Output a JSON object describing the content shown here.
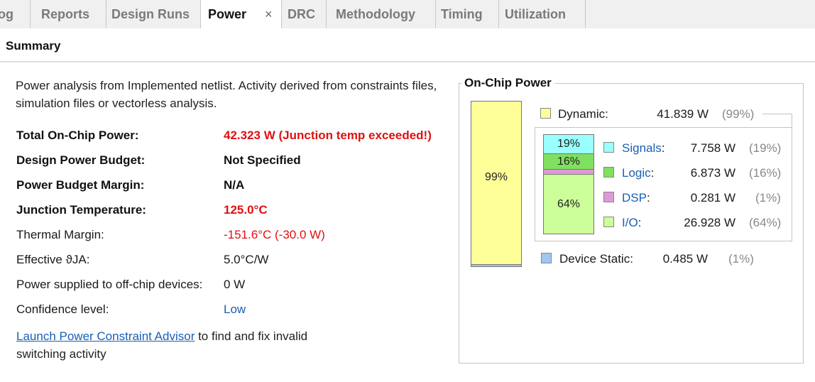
{
  "tabs": [
    {
      "label": "Log"
    },
    {
      "label": "Reports"
    },
    {
      "label": "Design Runs"
    },
    {
      "label": "Power",
      "active": true
    },
    {
      "label": "DRC"
    },
    {
      "label": "Methodology"
    },
    {
      "label": "Timing"
    },
    {
      "label": "Utilization"
    }
  ],
  "close_glyph": "×",
  "summary_title": "Summary",
  "intro": "Power analysis from Implemented netlist. Activity derived from constraints files, simulation files or vectorless analysis.",
  "rows": [
    {
      "label": "Total On-Chip Power:",
      "value": "42.323 W (Junction temp exceeded!)"
    },
    {
      "label": "Design Power Budget:",
      "value": "Not Specified"
    },
    {
      "label": "Power Budget Margin:",
      "value": "N/A"
    },
    {
      "label": "Junction Temperature:",
      "value": "125.0°C"
    },
    {
      "label": "Thermal Margin:",
      "value": "-151.6°C (-30.0 W)"
    },
    {
      "label": "Effective ϑJA:",
      "value": "5.0°C/W"
    },
    {
      "label": "Power supplied to off-chip devices:",
      "value": "0 W"
    },
    {
      "label": "Confidence level:",
      "value": "Low"
    }
  ],
  "advisor": {
    "link": "Launch Power Constraint Advisor",
    "text": " to find and fix invalid switching activity"
  },
  "on_chip": {
    "title": "On-Chip Power",
    "big_bar": {
      "dynamic_label": "99%",
      "dynamic_fraction": 0.99,
      "static_fraction": 0.01
    },
    "dynamic": {
      "label": "Dynamic:",
      "value": "41.839 W",
      "pct": "(99%)",
      "color": "#ffff99"
    },
    "static": {
      "label": "Device Static:",
      "value": "0.485 W",
      "pct": "(1%)",
      "color": "#9ec6f0"
    },
    "breakdown": [
      {
        "name": "Signals",
        "value": "7.758 W",
        "pct": "(19%)",
        "bar_label": "19%",
        "fraction": 0.19,
        "color": "#99ffff"
      },
      {
        "name": "Logic",
        "value": "6.873 W",
        "pct": "(16%)",
        "bar_label": "16%",
        "fraction": 0.16,
        "color": "#80e060"
      },
      {
        "name": "DSP",
        "value": "0.281 W",
        "pct": "(1%)",
        "bar_label": "",
        "fraction": 0.01,
        "color": "#e099d8"
      },
      {
        "name": "I/O",
        "value": "26.928 W",
        "pct": "(64%)",
        "bar_label": "64%",
        "fraction": 0.64,
        "color": "#ccff99"
      }
    ]
  }
}
